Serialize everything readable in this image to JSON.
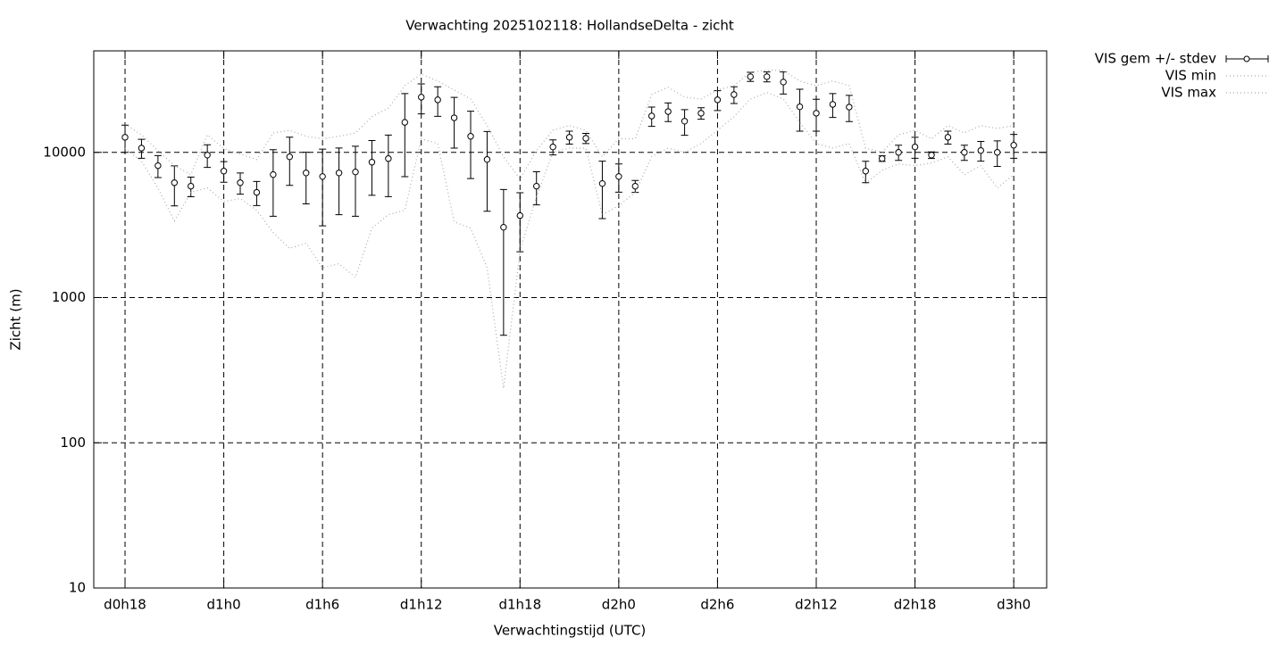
{
  "chart_data": {
    "type": "errorbar-line",
    "title": "Verwachting 2025102118: HollandseDelta - zicht",
    "x_label": "Verwachtingstijd (UTC)",
    "y_label": "Zicht (m)",
    "x": [
      18,
      19,
      20,
      21,
      22,
      23,
      24,
      25,
      26,
      27,
      28,
      29,
      30,
      31,
      32,
      33,
      34,
      35,
      36,
      37,
      38,
      39,
      40,
      41,
      42,
      43,
      44,
      45,
      46,
      47,
      48,
      49,
      50,
      51,
      52,
      53,
      54,
      55,
      56,
      57,
      58,
      59,
      60,
      61,
      62,
      63,
      64,
      65,
      66,
      67,
      68,
      69,
      70,
      71,
      72
    ],
    "series": [
      {
        "name": "VIS gem +/- stdev",
        "color": "#000000",
        "values": [
          12700,
          10700,
          8100,
          6180,
          5850,
          9580,
          7430,
          6180,
          5300,
          7030,
          9320,
          7220,
          6820,
          7220,
          7330,
          8560,
          9060,
          16100,
          24000,
          23000,
          17300,
          12900,
          8930,
          3050,
          3670,
          5850,
          10900,
          12700,
          12500,
          6100,
          6820,
          5850,
          17800,
          19100,
          16400,
          18600,
          23000,
          25000,
          33200,
          33200,
          30500,
          20600,
          18600,
          21400,
          20500,
          7430,
          9060,
          10000,
          10900,
          9580,
          12700,
          10000,
          10300,
          10000,
          11200
        ],
        "errors": [
          2700,
          1600,
          1400,
          1900,
          900,
          1700,
          1200,
          1030,
          1000,
          3400,
          3400,
          2800,
          3700,
          3500,
          3700,
          3500,
          4100,
          9300,
          5600,
          5300,
          6600,
          6300,
          5000,
          2500,
          1600,
          1500,
          1300,
          1300,
          1000,
          2600,
          1500,
          550,
          2700,
          2800,
          3300,
          1700,
          3600,
          3300,
          2400,
          2600,
          5300,
          6600,
          4600,
          4000,
          4200,
          1250,
          400,
          1200,
          1800,
          500,
          1300,
          1200,
          1600,
          2000,
          2100
        ]
      },
      {
        "name": "VIS min",
        "color": "#aaaaaa",
        "values": [
          10700,
          8680,
          5690,
          3370,
          5300,
          5690,
          4590,
          4800,
          3990,
          2800,
          2180,
          2370,
          1600,
          1710,
          1380,
          3010,
          3720,
          3990,
          12400,
          11500,
          3320,
          3010,
          1600,
          237,
          2110,
          4940,
          10000,
          10700,
          10700,
          3720,
          4290,
          5300,
          9320,
          10700,
          10000,
          11500,
          14200,
          17600,
          23300,
          25800,
          23300,
          16100,
          11500,
          10700,
          11500,
          6100,
          7530,
          8320,
          8100,
          8440,
          9320,
          7030,
          8100,
          5690,
          7030
        ]
      },
      {
        "name": "VIS max",
        "color": "#aaaaaa",
        "values": [
          15700,
          13200,
          10300,
          8100,
          7030,
          13200,
          10600,
          9720,
          8930,
          13600,
          14200,
          12900,
          12400,
          12900,
          13600,
          17600,
          20200,
          28800,
          34600,
          31000,
          26900,
          23300,
          15300,
          9320,
          6550,
          10300,
          14200,
          15300,
          14200,
          9320,
          12400,
          12400,
          25000,
          28000,
          24000,
          23300,
          26900,
          28800,
          35700,
          36700,
          36700,
          31000,
          28800,
          31000,
          28800,
          10700,
          10000,
          13200,
          14200,
          12400,
          15300,
          13600,
          15300,
          14600,
          15300
        ]
      }
    ],
    "xlim": [
      16.1,
      74
    ],
    "xticks": [
      {
        "value": 18,
        "label": "d0h18"
      },
      {
        "value": 24,
        "label": "d1h0"
      },
      {
        "value": 30,
        "label": "d1h6"
      },
      {
        "value": 36,
        "label": "d1h12"
      },
      {
        "value": 42,
        "label": "d1h18"
      },
      {
        "value": 48,
        "label": "d2h0"
      },
      {
        "value": 54,
        "label": "d2h6"
      },
      {
        "value": 60,
        "label": "d2h12"
      },
      {
        "value": 66,
        "label": "d2h18"
      },
      {
        "value": 72,
        "label": "d3h0"
      }
    ],
    "ylim": [
      10,
      50000
    ],
    "yticks": [
      10,
      100,
      1000,
      10000
    ],
    "y_scale": "log",
    "grid": true,
    "legend_position": "outside-top-right"
  }
}
